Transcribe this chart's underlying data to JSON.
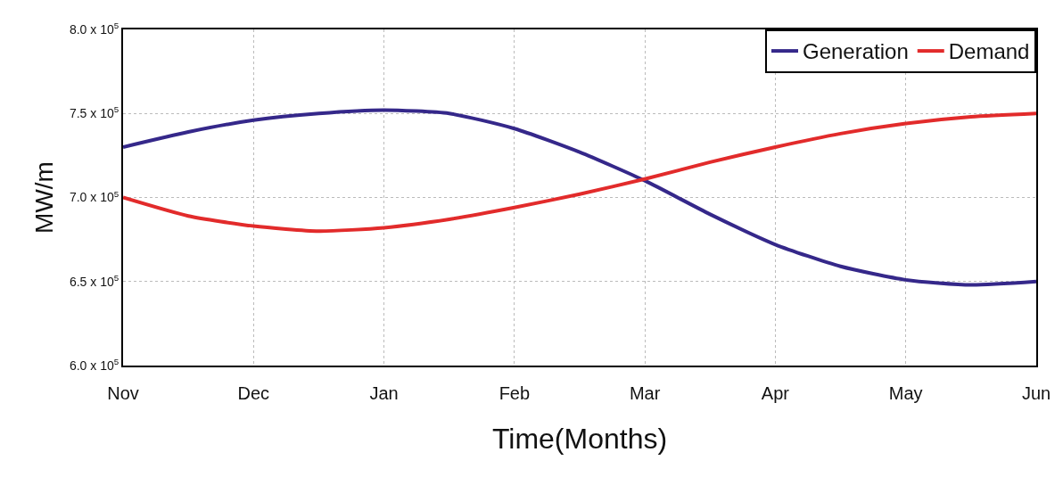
{
  "chart_data": {
    "type": "line",
    "xlabel": "Time(Months)",
    "ylabel": "MW/m",
    "categories": [
      "Nov",
      null,
      "Dec",
      null,
      "Jan",
      null,
      "Feb",
      null,
      "Mar",
      null,
      "Apr",
      null,
      "May",
      null,
      "Jun"
    ],
    "ylim": [
      600000,
      800000
    ],
    "yticks": [
      {
        "value": 600000,
        "label": "6.0 x 10$^{5}$"
      },
      {
        "value": 650000,
        "label": "6.5 x 10$^{5}$"
      },
      {
        "value": 700000,
        "label": "7.0 x 10$^{5}$"
      },
      {
        "value": 750000,
        "label": "7.5 x 10$^{5}$"
      },
      {
        "value": 800000,
        "label": "8.0 x 10$^{5}$"
      }
    ],
    "series": [
      {
        "name": "Generation",
        "color": "#35288a",
        "values": [
          730000,
          739000,
          746000,
          750000,
          752000,
          750000,
          741000,
          727000,
          710000,
          690000,
          672000,
          659000,
          651000,
          648000,
          650000
        ]
      },
      {
        "name": "Demand",
        "color": "#e22b2b",
        "values": [
          700000,
          689000,
          683000,
          680000,
          682000,
          687000,
          694000,
          702000,
          711000,
          721000,
          730000,
          738000,
          744000,
          748000,
          750000
        ]
      }
    ],
    "grid": true,
    "legend": "top right",
    "marker": "none",
    "line_style": "solid"
  }
}
